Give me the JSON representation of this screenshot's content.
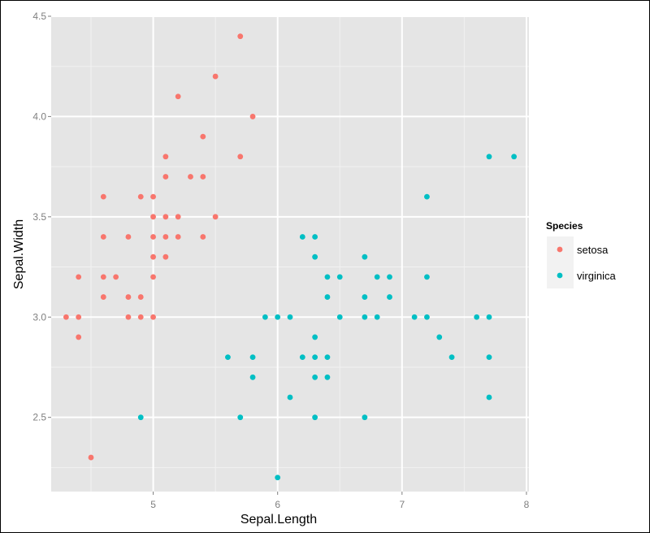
{
  "chart_data": {
    "type": "scatter",
    "xlabel": "Sepal.Length",
    "ylabel": "Sepal.Width",
    "xlim": [
      4.18,
      8.02
    ],
    "ylim": [
      2.13,
      4.5
    ],
    "x_ticks": [
      5,
      6,
      7,
      8
    ],
    "y_ticks": [
      2.5,
      3.0,
      3.5,
      4.0,
      4.5
    ],
    "x_tick_labels": [
      "5",
      "6",
      "7",
      "8"
    ],
    "y_tick_labels": [
      "2.5",
      "3.0",
      "3.5",
      "4.0",
      "4.5"
    ],
    "grid": true,
    "legend_position": "right",
    "legend": {
      "title": "Species"
    },
    "colors": {
      "panel": "#e5e5e5",
      "grid_major": "#ffffff",
      "grid_minor": "#f2f2f2",
      "legend_key": "#f2f2f2"
    },
    "series": [
      {
        "name": "setosa",
        "color": "#F8766D",
        "points": [
          [
            5.7,
            4.4
          ],
          [
            5.5,
            4.2
          ],
          [
            5.2,
            4.1
          ],
          [
            5.8,
            4.0
          ],
          [
            5.4,
            3.9
          ],
          [
            5.1,
            3.8
          ],
          [
            5.7,
            3.8
          ],
          [
            5.1,
            3.7
          ],
          [
            5.3,
            3.7
          ],
          [
            5.4,
            3.7
          ],
          [
            4.6,
            3.6
          ],
          [
            4.9,
            3.6
          ],
          [
            5.0,
            3.6
          ],
          [
            5.0,
            3.5
          ],
          [
            5.1,
            3.5
          ],
          [
            5.2,
            3.5
          ],
          [
            5.5,
            3.5
          ],
          [
            4.6,
            3.4
          ],
          [
            4.8,
            3.4
          ],
          [
            5.0,
            3.4
          ],
          [
            5.1,
            3.4
          ],
          [
            5.2,
            3.4
          ],
          [
            5.4,
            3.4
          ],
          [
            5.0,
            3.3
          ],
          [
            5.1,
            3.3
          ],
          [
            4.4,
            3.2
          ],
          [
            4.6,
            3.2
          ],
          [
            4.7,
            3.2
          ],
          [
            5.0,
            3.2
          ],
          [
            4.6,
            3.1
          ],
          [
            4.8,
            3.1
          ],
          [
            4.9,
            3.1
          ],
          [
            4.3,
            3.0
          ],
          [
            4.4,
            3.0
          ],
          [
            4.8,
            3.0
          ],
          [
            4.9,
            3.0
          ],
          [
            5.0,
            3.0
          ],
          [
            4.4,
            2.9
          ],
          [
            4.5,
            2.3
          ]
        ]
      },
      {
        "name": "virginica",
        "color": "#00BFC4",
        "points": [
          [
            7.7,
            3.8
          ],
          [
            7.9,
            3.8
          ],
          [
            7.2,
            3.6
          ],
          [
            6.2,
            3.4
          ],
          [
            6.3,
            3.4
          ],
          [
            6.3,
            3.3
          ],
          [
            6.7,
            3.3
          ],
          [
            6.4,
            3.2
          ],
          [
            6.5,
            3.2
          ],
          [
            6.8,
            3.2
          ],
          [
            6.9,
            3.2
          ],
          [
            7.2,
            3.2
          ],
          [
            6.4,
            3.1
          ],
          [
            6.7,
            3.1
          ],
          [
            6.9,
            3.1
          ],
          [
            5.9,
            3.0
          ],
          [
            6.0,
            3.0
          ],
          [
            6.1,
            3.0
          ],
          [
            6.5,
            3.0
          ],
          [
            6.7,
            3.0
          ],
          [
            6.8,
            3.0
          ],
          [
            7.1,
            3.0
          ],
          [
            7.2,
            3.0
          ],
          [
            7.6,
            3.0
          ],
          [
            7.7,
            3.0
          ],
          [
            6.3,
            2.9
          ],
          [
            7.3,
            2.9
          ],
          [
            5.6,
            2.8
          ],
          [
            5.8,
            2.8
          ],
          [
            6.2,
            2.8
          ],
          [
            6.3,
            2.8
          ],
          [
            6.4,
            2.8
          ],
          [
            7.4,
            2.8
          ],
          [
            7.7,
            2.8
          ],
          [
            5.8,
            2.7
          ],
          [
            6.3,
            2.7
          ],
          [
            6.4,
            2.7
          ],
          [
            6.1,
            2.6
          ],
          [
            7.7,
            2.6
          ],
          [
            4.9,
            2.5
          ],
          [
            5.7,
            2.5
          ],
          [
            6.3,
            2.5
          ],
          [
            6.7,
            2.5
          ],
          [
            6.0,
            2.2
          ]
        ]
      }
    ]
  }
}
